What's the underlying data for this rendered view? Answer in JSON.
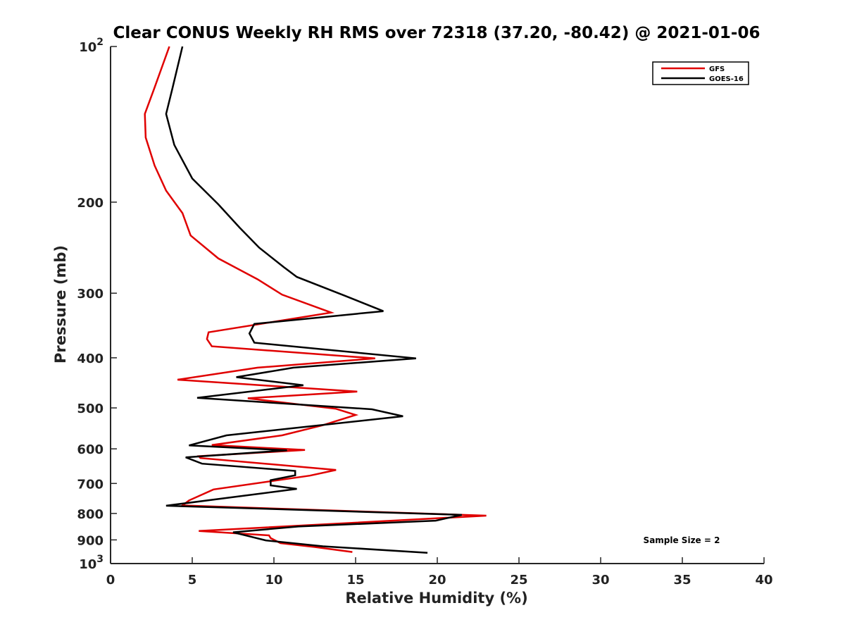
{
  "chart_data": {
    "type": "line",
    "title": "Clear CONUS Weekly RH RMS over 72318 (37.20, -80.42) @ 2021-01-06",
    "xlabel": "Relative Humidity (%)",
    "ylabel": "Pressure (mb)",
    "xlim": [
      0,
      40
    ],
    "ylim": [
      100,
      1000
    ],
    "yscale": "log",
    "y_reversed": true,
    "grid": false,
    "legend_position": "top-right",
    "x_ticks": [
      0,
      5,
      10,
      15,
      20,
      25,
      30,
      35,
      40
    ],
    "x_tick_labels": [
      "0",
      "5",
      "10",
      "15",
      "20",
      "25",
      "30",
      "35",
      "40"
    ],
    "y_ticks": [
      100,
      200,
      300,
      400,
      500,
      600,
      700,
      800,
      900,
      1000
    ],
    "y_tick_labels": [
      {
        "base": "10",
        "sup": "2"
      },
      {
        "base": "200",
        "sup": ""
      },
      {
        "base": "300",
        "sup": ""
      },
      {
        "base": "400",
        "sup": ""
      },
      {
        "base": "500",
        "sup": ""
      },
      {
        "base": "600",
        "sup": ""
      },
      {
        "base": "700",
        "sup": ""
      },
      {
        "base": "800",
        "sup": ""
      },
      {
        "base": "900",
        "sup": ""
      },
      {
        "base": "10",
        "sup": "3"
      }
    ],
    "annotation": "Sample Size = 2",
    "series": [
      {
        "name": "GFS",
        "color": "#e00000",
        "points": [
          [
            3.6,
            100
          ],
          [
            2.7,
            120
          ],
          [
            2.1,
            135
          ],
          [
            2.15,
            150
          ],
          [
            2.7,
            170
          ],
          [
            3.4,
            190
          ],
          [
            4.4,
            210
          ],
          [
            4.9,
            232
          ],
          [
            6.6,
            257
          ],
          [
            9.0,
            282
          ],
          [
            10.5,
            302
          ],
          [
            13.5,
            327
          ],
          [
            6.0,
            357
          ],
          [
            5.9,
            368
          ],
          [
            6.2,
            380
          ],
          [
            16.2,
            401
          ],
          [
            9.0,
            418
          ],
          [
            4.1,
            441
          ],
          [
            15.1,
            465
          ],
          [
            8.4,
            479
          ],
          [
            13.8,
            502
          ],
          [
            15.0,
            516
          ],
          [
            13.0,
            540
          ],
          [
            10.5,
            565
          ],
          [
            6.2,
            590
          ],
          [
            11.9,
            603
          ],
          [
            5.4,
            620
          ],
          [
            5.5,
            625
          ],
          [
            13.8,
            659
          ],
          [
            12.2,
            676
          ],
          [
            6.3,
            719
          ],
          [
            4.8,
            755
          ],
          [
            4.4,
            772
          ],
          [
            23.0,
            808
          ],
          [
            5.4,
            865
          ],
          [
            9.7,
            882
          ],
          [
            9.8,
            893
          ],
          [
            10.4,
            913
          ],
          [
            12.5,
            929
          ],
          [
            14.8,
            950
          ]
        ]
      },
      {
        "name": "GOES-16",
        "color": "#000000",
        "points": [
          [
            4.4,
            100
          ],
          [
            3.8,
            120
          ],
          [
            3.4,
            135
          ],
          [
            3.9,
            155
          ],
          [
            5.0,
            180
          ],
          [
            6.6,
            202
          ],
          [
            7.9,
            224
          ],
          [
            9.1,
            245
          ],
          [
            10.6,
            267
          ],
          [
            11.4,
            279
          ],
          [
            14.3,
            303
          ],
          [
            16.7,
            325
          ],
          [
            8.8,
            344
          ],
          [
            8.5,
            359
          ],
          [
            8.8,
            374
          ],
          [
            18.7,
            401
          ],
          [
            11.2,
            418
          ],
          [
            7.7,
            436
          ],
          [
            11.8,
            452
          ],
          [
            5.3,
            478
          ],
          [
            16.0,
            503
          ],
          [
            17.9,
            519
          ],
          [
            7.1,
            565
          ],
          [
            4.8,
            591
          ],
          [
            10.8,
            604
          ],
          [
            4.6,
            623
          ],
          [
            5.6,
            641
          ],
          [
            11.3,
            662
          ],
          [
            11.3,
            675
          ],
          [
            9.8,
            690
          ],
          [
            9.8,
            706
          ],
          [
            11.4,
            717
          ],
          [
            3.4,
            773
          ],
          [
            21.5,
            805
          ],
          [
            19.9,
            826
          ],
          [
            11.5,
            848
          ],
          [
            7.5,
            870
          ],
          [
            9.5,
            902
          ],
          [
            13.0,
            926
          ],
          [
            19.4,
            953
          ]
        ]
      }
    ]
  }
}
